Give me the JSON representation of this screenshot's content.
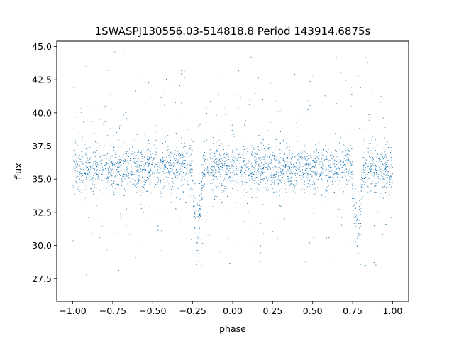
{
  "chart_data": {
    "type": "scatter",
    "title": "1SWASPJ130556.03-514818.8 Period 143914.6875s",
    "xlabel": "phase",
    "ylabel": "flux",
    "xlim": [
      -1.1,
      1.1
    ],
    "ylim": [
      25.8,
      45.4
    ],
    "xticks": [
      -1.0,
      -0.75,
      -0.5,
      -0.25,
      0.0,
      0.25,
      0.5,
      0.75,
      1.0
    ],
    "xtick_labels": [
      "−1.00",
      "−0.75",
      "−0.50",
      "−0.25",
      "0.00",
      "0.25",
      "0.50",
      "0.75",
      "1.00"
    ],
    "yticks": [
      27.5,
      30.0,
      32.5,
      35.0,
      37.5,
      40.0,
      42.5,
      45.0
    ],
    "ytick_labels": [
      "27.5",
      "30.0",
      "32.5",
      "35.0",
      "37.5",
      "40.0",
      "42.5",
      "45.0"
    ],
    "grid": false,
    "marker_color": "#1f77b4",
    "series": [
      {
        "x_range": [
          -1.0,
          1.0
        ],
        "baseline_flux": 35.8,
        "scatter_band": [
          33.5,
          38.0
        ],
        "eclipses": [
          {
            "phase": -0.22,
            "min_flux": 29.8
          },
          {
            "phase": 0.78,
            "min_flux": 29.8
          }
        ]
      }
    ]
  }
}
